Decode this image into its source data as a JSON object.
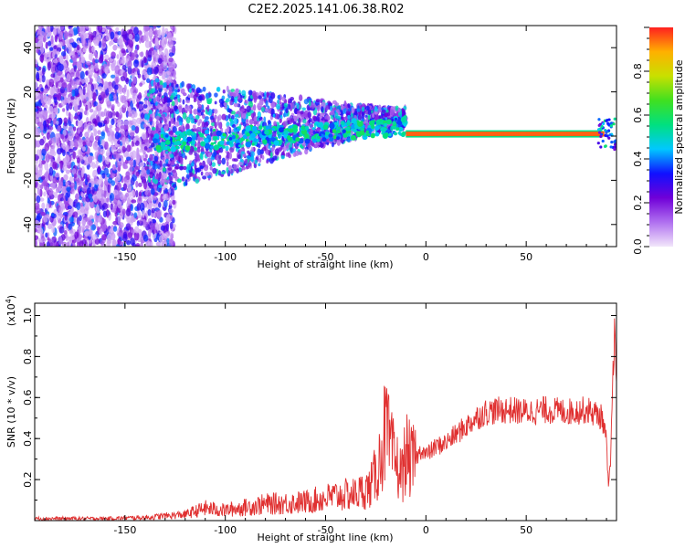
{
  "title": "C2E2.2025.141.06.38.R02",
  "colors": {
    "signal": "#e03030",
    "axis": "#000000"
  },
  "chart_data": [
    {
      "type": "heatmap",
      "xlabel": "Height of straight line (km)",
      "ylabel": "Frequency (Hz)",
      "xlim": [
        -195,
        95
      ],
      "ylim": [
        -50,
        50
      ],
      "xticks": [
        -150,
        -100,
        -50,
        0,
        50
      ],
      "yticks": [
        -40,
        -20,
        0,
        20,
        40
      ],
      "ridge_frequency_hz": 1,
      "colorbar": {
        "label": "Normalized spectral amplitude",
        "range": [
          0,
          1
        ],
        "ticks": [
          0.0,
          0.2,
          0.4,
          0.6,
          0.8
        ],
        "colormap": [
          "#f2e6fa",
          "#b070f0",
          "#7000d8",
          "#1010ff",
          "#00c8ff",
          "#00e080",
          "#40e020",
          "#c8e000",
          "#ffb000",
          "#ff2020"
        ]
      }
    },
    {
      "type": "line",
      "xlabel": "Height of straight line (km)",
      "ylabel": "SNR (10 * v/v)",
      "yscale_label": "(x10",
      "yscale_exp": "4",
      "xlim": [
        -195,
        95
      ],
      "ylim": [
        0,
        1.06
      ],
      "xticks": [
        -150,
        -100,
        -50,
        0,
        50
      ],
      "yticks": [
        0.2,
        0.4,
        0.6,
        0.8,
        1.0
      ],
      "yticklabels": [
        "0.2",
        "0.4",
        "0.6",
        "0.8",
        "1.0"
      ],
      "series": [
        {
          "x": [
            -195,
            -160,
            -140,
            -120,
            -110,
            -100,
            -80,
            -60,
            -45,
            -35,
            -28,
            -24,
            -20,
            -18,
            -15,
            -12,
            -10,
            -7,
            -5,
            -2,
            0,
            5,
            10,
            15,
            20,
            25,
            30,
            40,
            50,
            60,
            70,
            80,
            85,
            88,
            90,
            91,
            92,
            93,
            94,
            95
          ],
          "values": [
            0.01,
            0.01,
            0.015,
            0.03,
            0.06,
            0.05,
            0.08,
            0.09,
            0.12,
            0.13,
            0.16,
            0.25,
            0.45,
            0.35,
            0.28,
            0.22,
            0.33,
            0.28,
            0.3,
            0.35,
            0.32,
            0.36,
            0.38,
            0.42,
            0.46,
            0.5,
            0.53,
            0.54,
            0.53,
            0.54,
            0.53,
            0.54,
            0.52,
            0.5,
            0.38,
            0.15,
            0.28,
            0.62,
            0.95,
            0.6
          ]
        }
      ]
    }
  ]
}
